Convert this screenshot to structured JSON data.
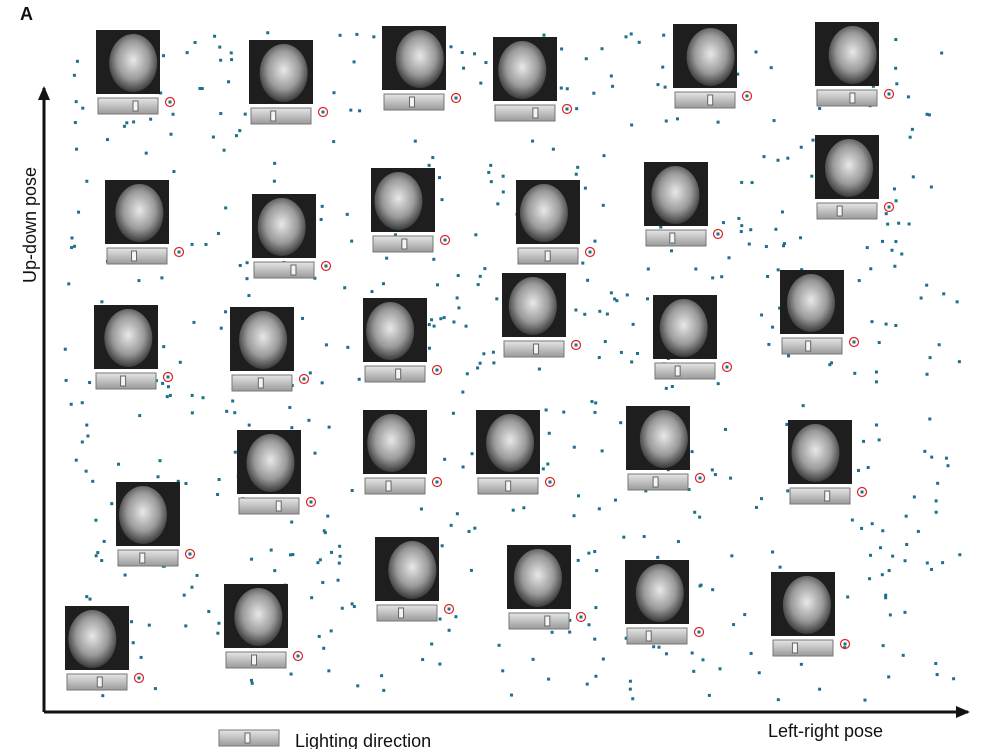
{
  "panel_label": "A",
  "y_axis_label": "Up-down pose",
  "x_axis_label": "Left-right pose",
  "legend": {
    "label": "Lighting direction"
  }
}
